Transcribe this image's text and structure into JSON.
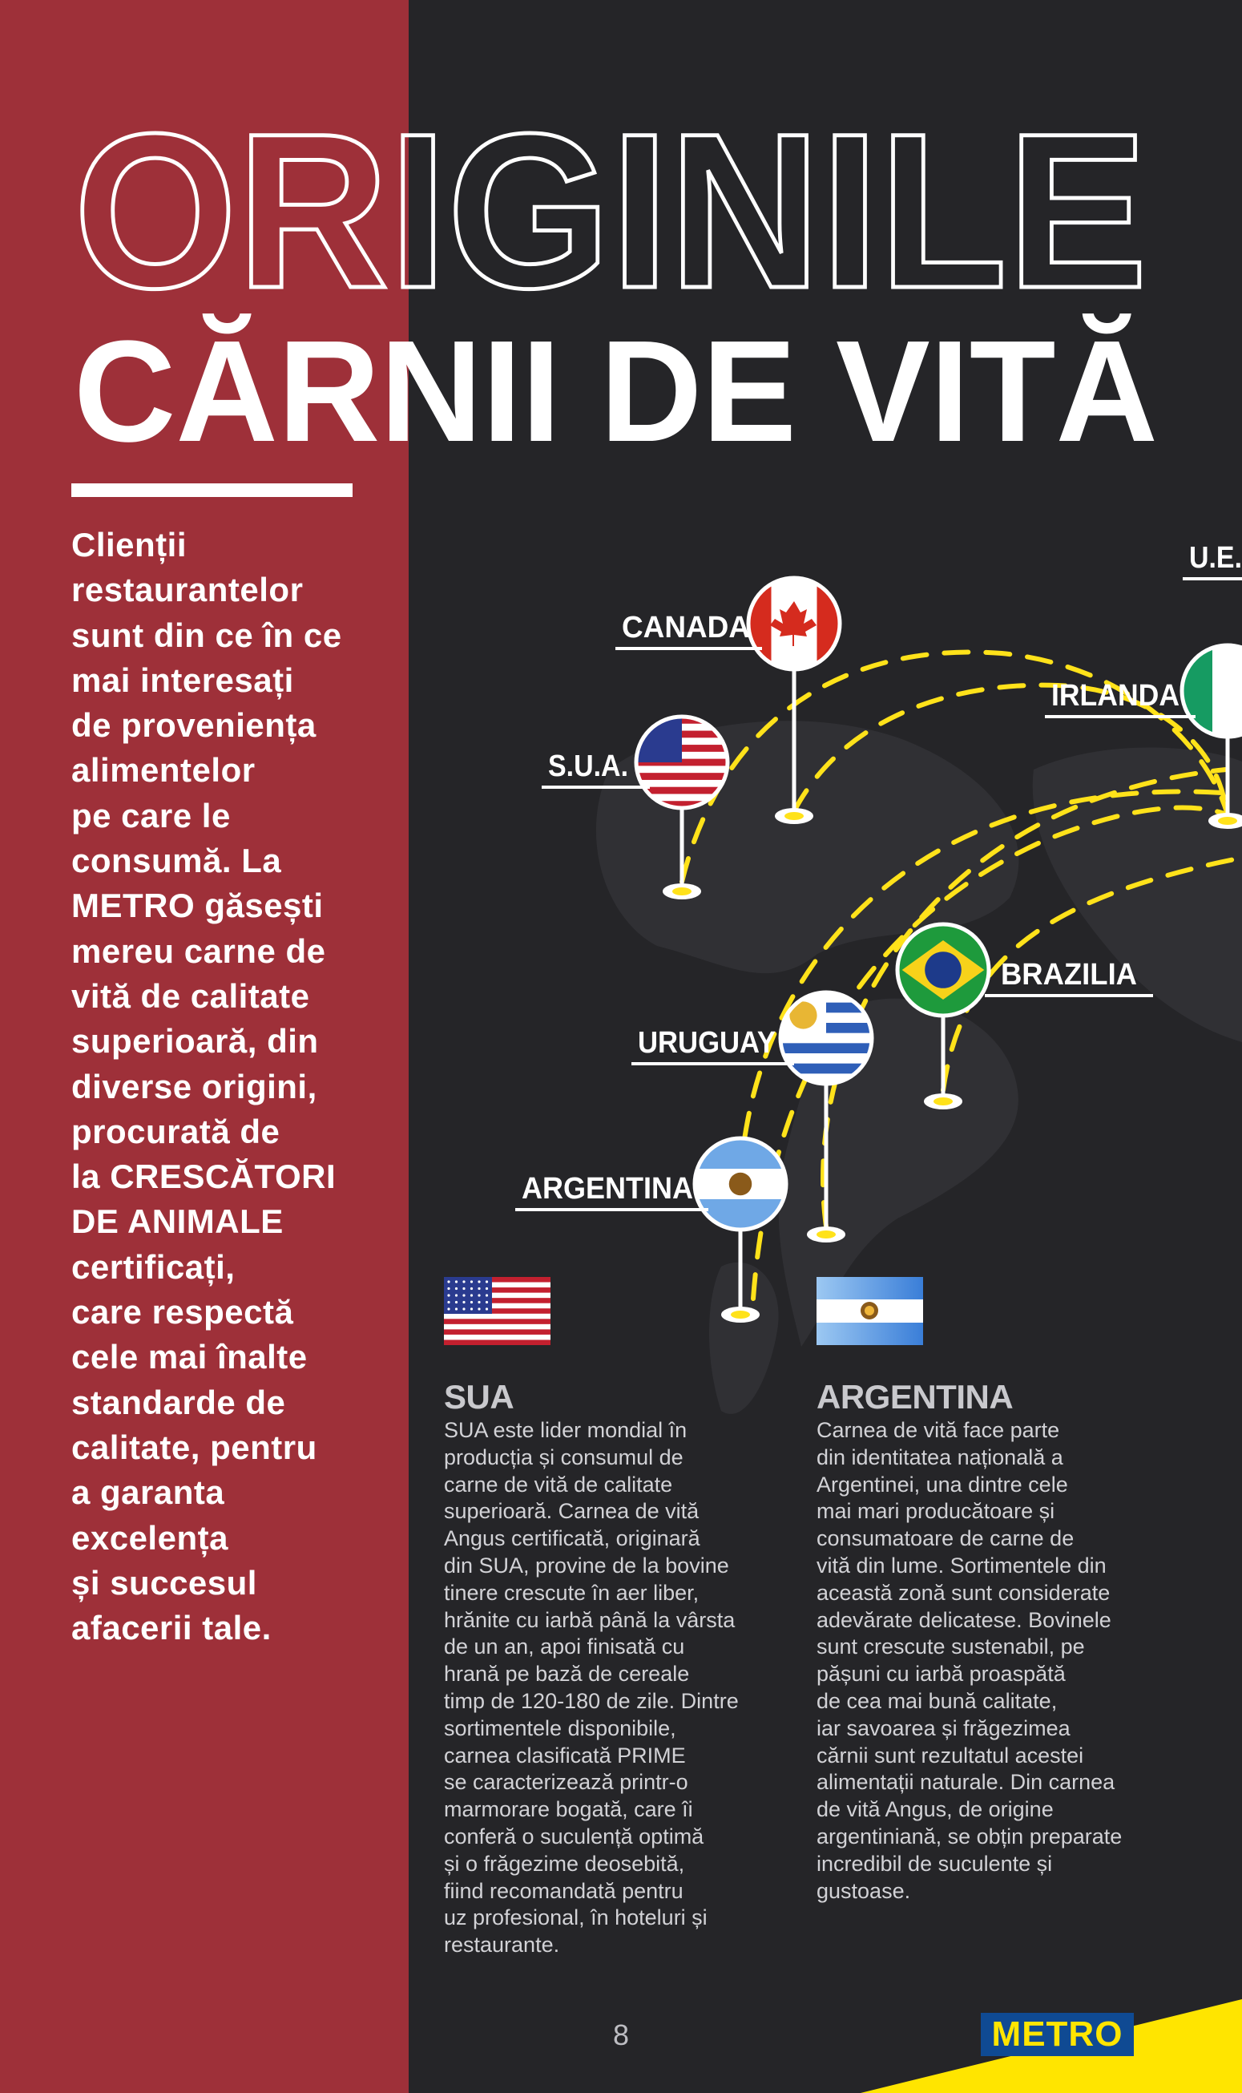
{
  "title": {
    "line1": "ORIGINILE",
    "line2": "CĂRNII DE VITĂ"
  },
  "intro_lines": [
    "Clienții",
    "restaurantelor",
    "sunt din ce în ce",
    "mai interesați",
    "de proveniența",
    "alimentelor",
    "pe care le",
    "consumă. La",
    "METRO găsești",
    "mereu carne de",
    "vită de calitate",
    "superioară, din",
    "diverse origini,",
    "procurată de",
    "la CRESCĂTORI",
    "DE ANIMALE",
    "certificați,",
    "care respectă",
    "cele mai înalte",
    "standarde de",
    "calitate, pentru",
    "a garanta",
    "excelența",
    "și succesul",
    "afacerii tale."
  ],
  "map": {
    "pins": [
      {
        "label": "CANADA",
        "flag": "canada-flag"
      },
      {
        "label": "S.U.A.",
        "flag": "usa-flag"
      },
      {
        "label": "IRLANDA",
        "flag": "ireland-flag"
      },
      {
        "label": "U.E.",
        "flag": "eu"
      },
      {
        "label": "BRAZILIA",
        "flag": "brazil-flag"
      },
      {
        "label": "URUGUAY",
        "flag": "uruguay-flag"
      },
      {
        "label": "ARGENTINA",
        "flag": "argentina-flag"
      }
    ],
    "route_color": "#ffe21a"
  },
  "sections": [
    {
      "heading": "SUA",
      "lines": [
        "SUA este lider mondial în",
        "producția și consumul de",
        "carne de vită de calitate",
        "superioară. Carnea de vită",
        "Angus certificată, originară",
        "din SUA, provine de la bovine",
        "tinere crescute în aer liber,",
        "hrănite cu iarbă până la vârsta",
        "de un an, apoi finisată cu",
        "hrană pe bază de cereale",
        "timp de 120-180 de zile. Dintre",
        "sortimentele disponibile,",
        "carnea clasificată PRIME",
        "se caracterizează printr-o",
        "marmorare bogată, care îi",
        "conferă o suculență optimă",
        "și o frăgezime deosebită,",
        "fiind recomandată pentru",
        "uz profesional, în hoteluri și",
        "restaurante."
      ]
    },
    {
      "heading": "ARGENTINA",
      "lines": [
        "Carnea de vită face parte",
        "din identitatea națională a",
        "Argentinei, una dintre cele",
        "mai mari producătoare și",
        "consumatoare de carne de",
        "vită din lume. Sortimentele din",
        "această zonă sunt considerate",
        "adevărate delicatese. Bovinele",
        "sunt crescute sustenabil, pe",
        "pășuni cu iarbă proaspătă",
        "de cea mai bună calitate,",
        "iar savoarea și frăgezimea",
        "cărnii sunt rezultatul acestei",
        "alimentații naturale. Din carnea",
        "de vită Angus, de origine",
        "argentiniană, se obțin preparate",
        "incredibil de suculente și",
        "gustoase."
      ]
    }
  ],
  "footer": {
    "page_number": "8",
    "logo": "METRO"
  },
  "colors": {
    "red_panel": "#9e3039",
    "background": "#252528",
    "accent_yellow": "#ffe500",
    "logo_blue": "#0f4a93"
  }
}
